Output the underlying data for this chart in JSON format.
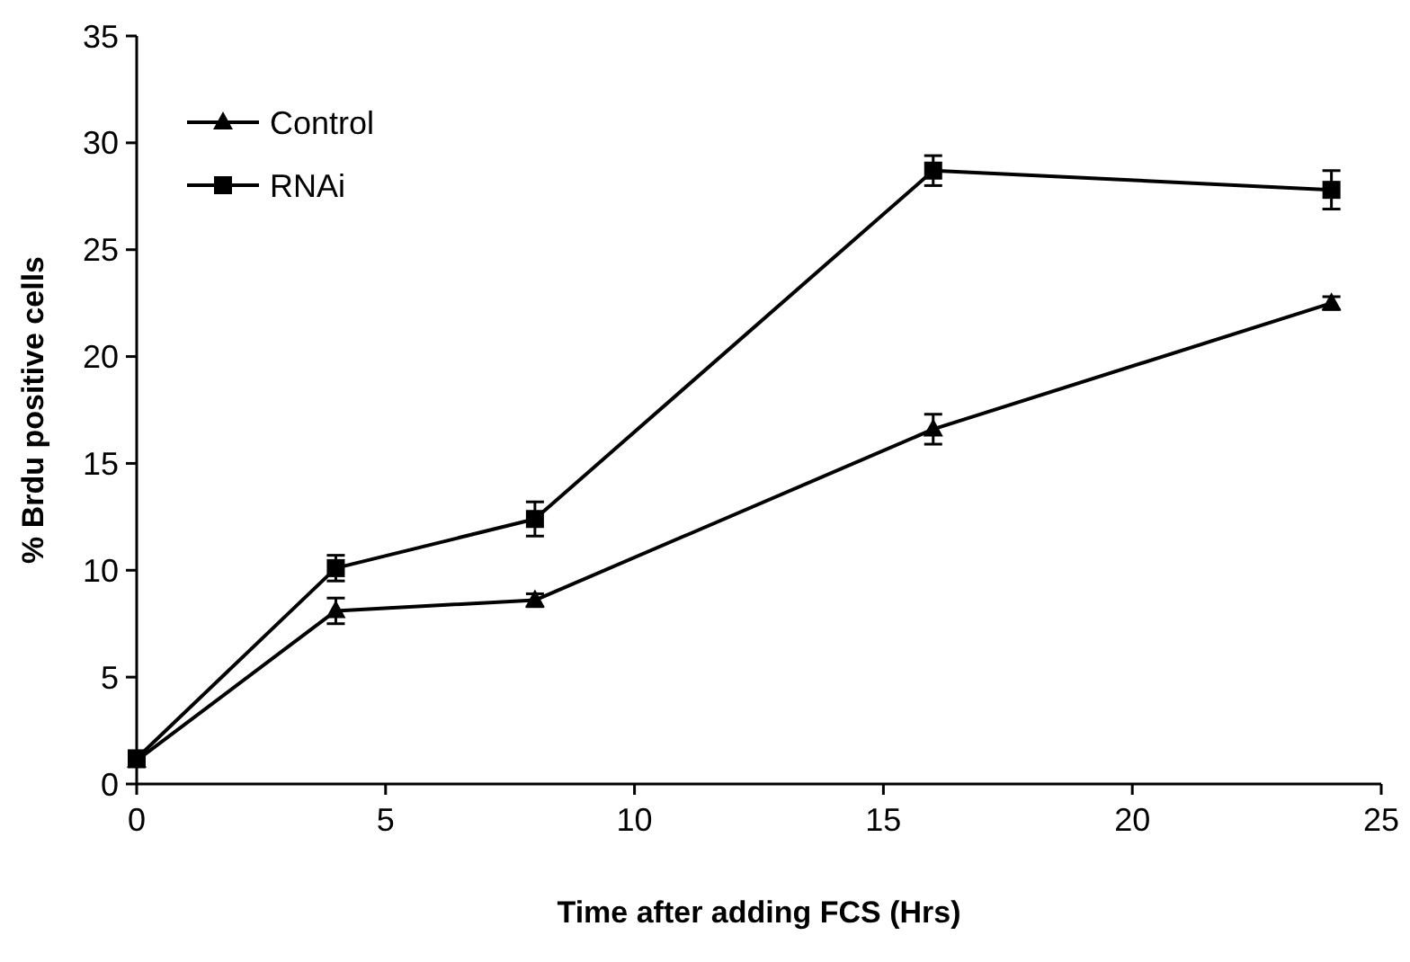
{
  "chart_data": {
    "type": "line",
    "xlabel": "Time after adding FCS (Hrs)",
    "ylabel": "% Brdu positive cells",
    "xlim": [
      0,
      25
    ],
    "xticks": [
      0,
      5,
      10,
      15,
      20,
      25
    ],
    "ylim": [
      0,
      35
    ],
    "yticks": [
      0,
      5,
      10,
      15,
      20,
      25,
      30,
      35
    ],
    "x": [
      0,
      4,
      8,
      16,
      24
    ],
    "legend": "top left",
    "grid": false,
    "line_style": "solid",
    "series": [
      {
        "name": "Control",
        "color": "#000000",
        "marker": "triangle",
        "values": [
          1.1,
          8.1,
          8.6,
          16.6,
          22.5
        ],
        "errors": [
          0.3,
          0.6,
          0.3,
          0.7,
          0.3
        ]
      },
      {
        "name": "RNAi",
        "color": "#000000",
        "marker": "square",
        "values": [
          1.2,
          10.1,
          12.4,
          28.7,
          27.8
        ],
        "errors": [
          0.3,
          0.6,
          0.8,
          0.7,
          0.9
        ]
      }
    ]
  }
}
